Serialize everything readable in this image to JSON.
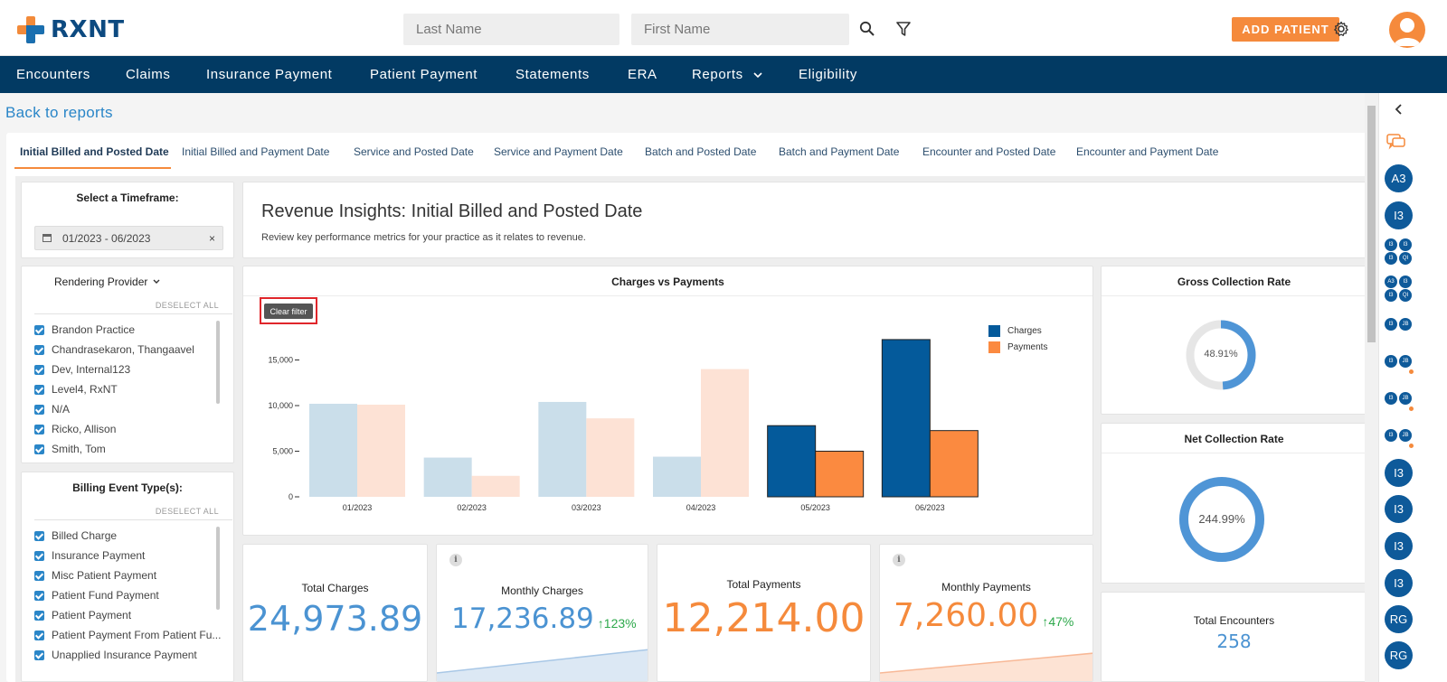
{
  "header": {
    "logo_text": "RXNT",
    "last_name_placeholder": "Last Name",
    "first_name_placeholder": "First Name",
    "add_patient_label": "ADD PATIENT"
  },
  "nav": {
    "items": [
      "Encounters",
      "Claims",
      "Insurance Payment",
      "Patient Payment",
      "Statements",
      "ERA",
      "Reports",
      "Eligibility"
    ]
  },
  "back_link": "Back to reports",
  "tabs": [
    "Initial Billed and Posted Date",
    "Initial Billed and Payment Date",
    "Service and Posted Date",
    "Service and Payment Date",
    "Batch and Posted Date",
    "Batch and Payment Date",
    "Encounter and Posted Date",
    "Encounter and Payment Date"
  ],
  "timeframe": {
    "title": "Select a Timeframe:",
    "value": "01/2023 - 06/2023",
    "clear": "×"
  },
  "rendering_provider": {
    "title": "Rendering Provider",
    "deselect": "DESELECT ALL",
    "items": [
      "Brandon Practice",
      "Chandrasekaron, Thangaavel",
      "Dev, Internal123",
      "Level4, RxNT",
      "N/A",
      "Ricko, Allison",
      "Smith, Tom"
    ]
  },
  "billing_event": {
    "title": "Billing Event Type(s):",
    "deselect": "DESELECT ALL",
    "items": [
      "Billed Charge",
      "Insurance Payment",
      "Misc Patient Payment",
      "Patient Fund Payment",
      "Patient Payment",
      "Patient Payment From Patient Fu...",
      "Unapplied Insurance Payment"
    ]
  },
  "insights": {
    "title": "Revenue Insights: Initial Billed and Posted Date",
    "subtitle": "Review key performance metrics for your practice as it relates to revenue."
  },
  "chart_data": {
    "type": "bar",
    "title": "Charges vs Payments",
    "categories": [
      "01/2023",
      "02/2023",
      "03/2023",
      "04/2023",
      "05/2023",
      "06/2023"
    ],
    "series": [
      {
        "name": "Charges",
        "values": [
          10200,
          4300,
          10400,
          4400,
          7800,
          17236.89
        ]
      },
      {
        "name": "Payments",
        "values": [
          10100,
          2300,
          8600,
          14000,
          5000,
          7260.0
        ]
      }
    ],
    "highlighted_categories": [
      "05/2023",
      "06/2023"
    ],
    "yticks": [
      "15,000",
      "10,000",
      "5,000",
      "0"
    ],
    "ylim": [
      0,
      17500
    ],
    "legend_position": "top-right",
    "colors": {
      "charges": "#045a9b",
      "payments": "#fb8a40",
      "charges_faded": "#cadeea",
      "payments_faded": "#fde2d5"
    },
    "clear_filter_label": "Clear filter"
  },
  "kpis": {
    "total_charges": {
      "title": "Total Charges",
      "value": "24,973.89"
    },
    "monthly_charges": {
      "title": "Monthly Charges",
      "value": "17,236.89",
      "change": "123%"
    },
    "total_payments": {
      "title": "Total Payments",
      "value": "12,214.00"
    },
    "monthly_payments": {
      "title": "Monthly Payments",
      "value": "7,260.00",
      "change": "47%"
    }
  },
  "gross_collection": {
    "title": "Gross Collection Rate",
    "value": "48.91%",
    "fraction": 0.4891
  },
  "net_collection": {
    "title": "Net Collection Rate",
    "value": "244.99%",
    "fraction": 1.0
  },
  "total_encounters": {
    "title": "Total Encounters",
    "value": "258"
  },
  "rail": {
    "avatars": [
      "A3",
      "I3",
      "I3",
      "I3",
      "I3",
      "RG",
      "RG"
    ],
    "mini_group_1": [
      "I3",
      "I3",
      "I3",
      "QI"
    ],
    "mini_group_2": [
      "A3",
      "I3",
      "I3",
      "QI"
    ],
    "mini_pairs": [
      [
        "I3",
        "JB"
      ],
      [
        "I3",
        "JB"
      ],
      [
        "I3",
        "JB"
      ],
      [
        "I3",
        "JB"
      ]
    ]
  }
}
